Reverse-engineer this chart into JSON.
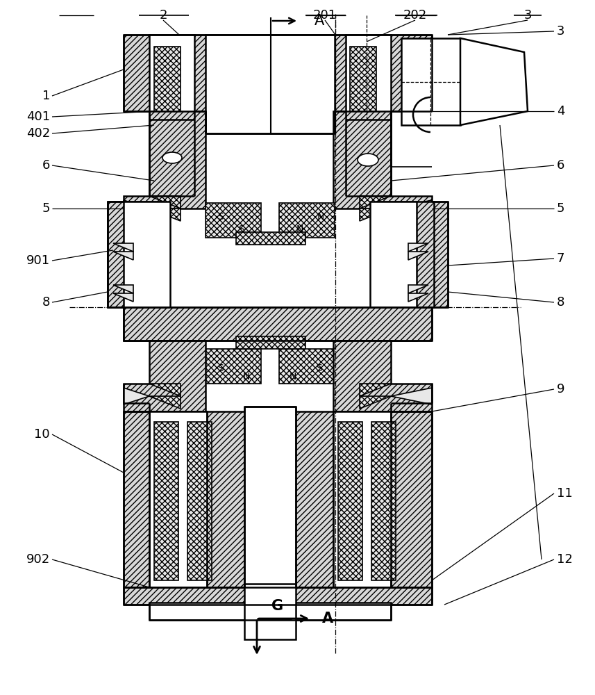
{
  "bg_color": "#ffffff",
  "fig_width": 8.57,
  "fig_height": 10.0,
  "lw_main": 1.8,
  "lw_thin": 1.2,
  "hatch_body": "////",
  "hatch_piezo": "xxxx",
  "fc_body": "#d8d8d8",
  "fc_piezo": "#e8e8e8",
  "fc_white": "#ffffff",
  "labels_left": [
    [
      "1",
      80,
      862
    ],
    [
      "401",
      80,
      832
    ],
    [
      "402",
      80,
      808
    ],
    [
      "6",
      80,
      758
    ],
    [
      "5",
      80,
      700
    ],
    [
      "901",
      80,
      628
    ],
    [
      "8",
      80,
      565
    ],
    [
      "10",
      80,
      370
    ],
    [
      "902",
      80,
      195
    ]
  ],
  "labels_right": [
    [
      "3",
      790,
      955
    ],
    [
      "4",
      790,
      840
    ],
    [
      "5",
      790,
      700
    ],
    [
      "6",
      790,
      758
    ],
    [
      "7",
      790,
      628
    ],
    [
      "8",
      790,
      565
    ],
    [
      "9",
      790,
      440
    ],
    [
      "11",
      790,
      290
    ],
    [
      "12",
      790,
      195
    ]
  ],
  "labels_top": [
    [
      "2",
      235,
      978
    ],
    [
      "201",
      468,
      978
    ],
    [
      "202",
      598,
      978
    ],
    [
      "3",
      760,
      978
    ]
  ]
}
